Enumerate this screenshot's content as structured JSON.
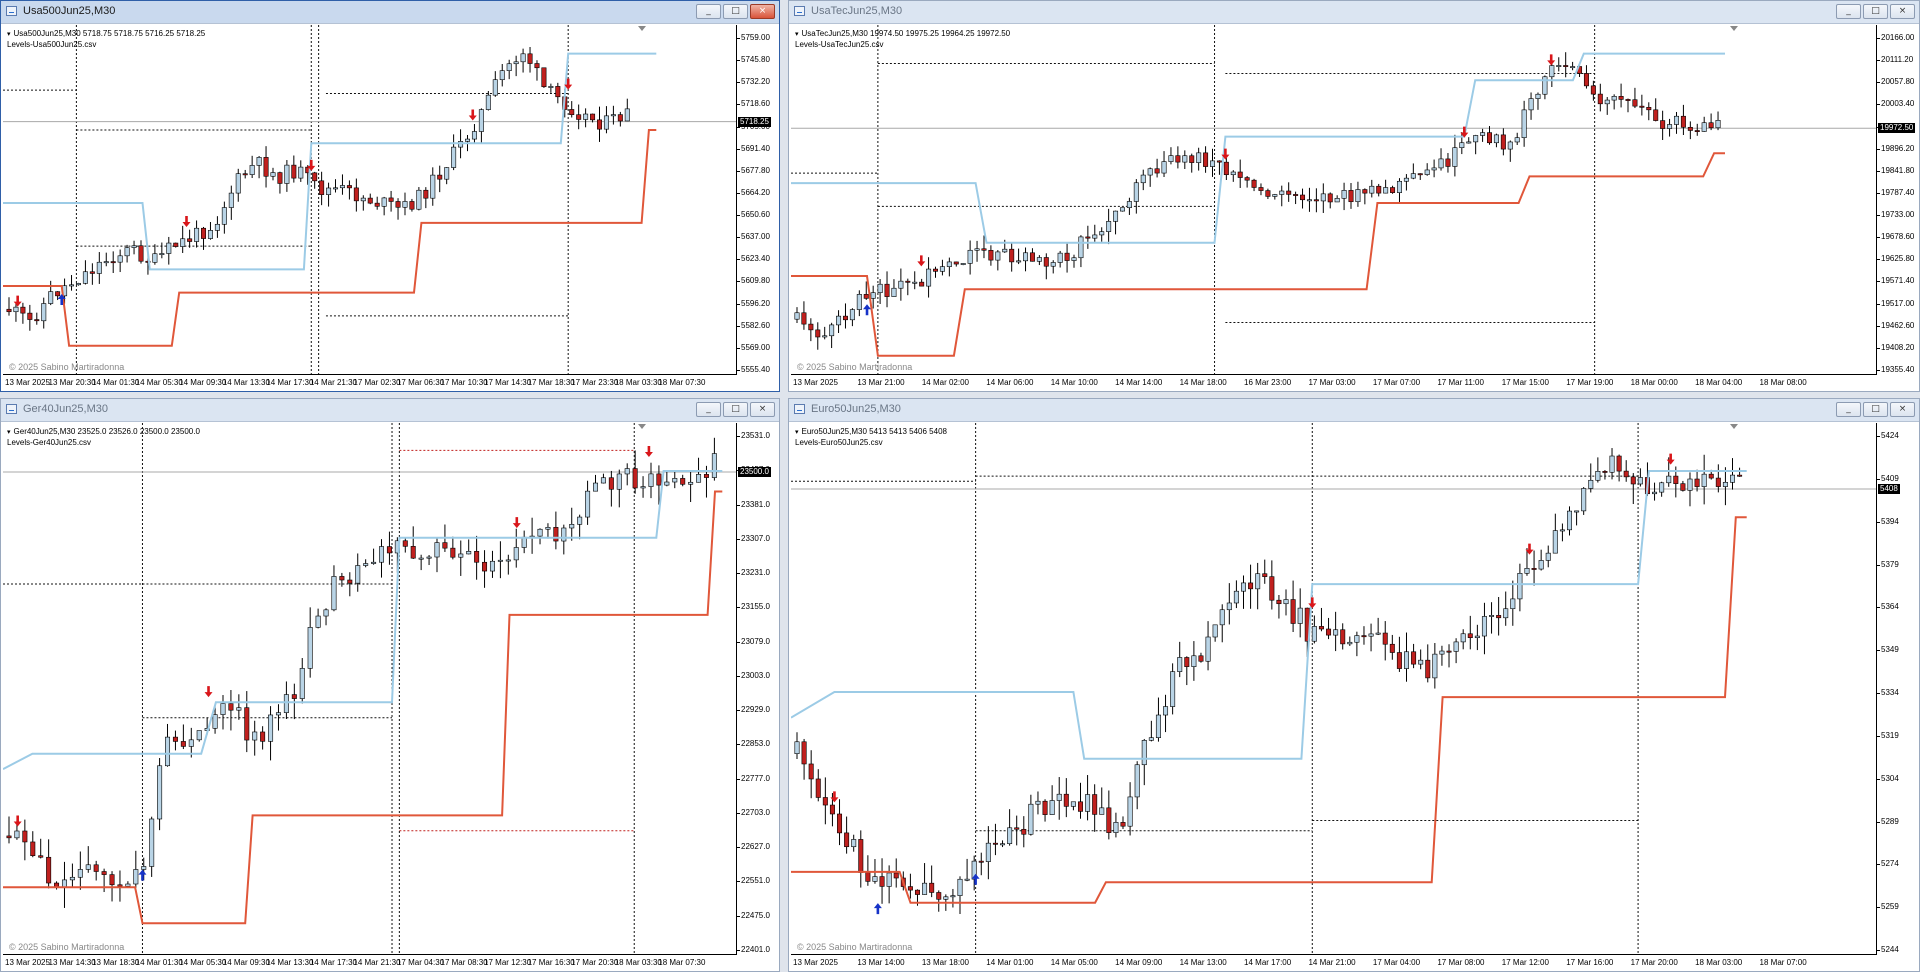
{
  "windows": [
    {
      "id": "w1",
      "title": "Usa500Jun25,M30",
      "header_line1": "Usa500Jun25,M30  5718.75 5718.75 5716.25 5718.25",
      "header_line2": "Levels-Usa500Jun25.csv",
      "copyright": "© 2025 Sabino Martiradonna",
      "current_price": "5718.25",
      "price_ticks": [
        "5759.00",
        "5745.80",
        "5732.20",
        "5718.60",
        "5705.00",
        "5691.40",
        "5677.80",
        "5664.20",
        "5650.60",
        "5637.00",
        "5623.40",
        "5609.80",
        "5596.20",
        "5582.60",
        "5569.00",
        "5555.40"
      ],
      "time_labels": [
        "13 Mar 2025",
        "13 Mar 20:30",
        "14 Mar 01:30",
        "14 Mar 05:30",
        "14 Mar 09:30",
        "14 Mar 13:30",
        "14 Mar 17:30",
        "14 Mar 21:30",
        "17 Mar 02:30",
        "17 Mar 06:30",
        "17 Mar 10:30",
        "17 Mar 14:30",
        "17 Mar 18:30",
        "17 Mar 23:30",
        "18 Mar 03:30",
        "18 Mar 07:30"
      ],
      "buttons": {
        "minimize": "_",
        "maximize": "□",
        "close": "×"
      }
    },
    {
      "id": "w2",
      "title": "UsaTecJun25,M30",
      "header_line1": "UsaTecJun25,M30  19974.50 19975.25 19964.25 19972.50",
      "header_line2": "Levels-UsaTecJun25.csv",
      "copyright": "© 2025 Sabino Martiradonna",
      "current_price": "19972.50",
      "price_ticks": [
        "20166.00",
        "20111.20",
        "20057.80",
        "20003.40",
        "19949.00",
        "19896.20",
        "19841.80",
        "19787.40",
        "19733.00",
        "19678.60",
        "19625.80",
        "19571.40",
        "19517.00",
        "19462.60",
        "19408.20",
        "19355.40"
      ],
      "time_labels": [
        "13 Mar 2025",
        "13 Mar 21:00",
        "14 Mar 02:00",
        "14 Mar 06:00",
        "14 Mar 10:00",
        "14 Mar 14:00",
        "14 Mar 18:00",
        "16 Mar 23:00",
        "17 Mar 03:00",
        "17 Mar 07:00",
        "17 Mar 11:00",
        "17 Mar 15:00",
        "17 Mar 19:00",
        "18 Mar 00:00",
        "18 Mar 04:00",
        "18 Mar 08:00"
      ],
      "buttons": {
        "minimize": "_",
        "maximize": "□",
        "close": "×"
      }
    },
    {
      "id": "w3",
      "title": "Ger40Jun25,M30",
      "header_line1": "Ger40Jun25,M30  23525.0 23526.0 23500.0 23500.0",
      "header_line2": "Levels-Ger40Jun25.csv",
      "copyright": "© 2025 Sabino Martiradonna",
      "current_price": "23500.0",
      "price_ticks": [
        "23531.0",
        "23457.0",
        "23381.0",
        "23307.0",
        "23231.0",
        "23155.0",
        "23079.0",
        "23003.0",
        "22929.0",
        "22853.0",
        "22777.0",
        "22703.0",
        "22627.0",
        "22551.0",
        "22475.0",
        "22401.0"
      ],
      "time_labels": [
        "13 Mar 2025",
        "13 Mar 14:30",
        "13 Mar 18:30",
        "14 Mar 01:30",
        "14 Mar 05:30",
        "14 Mar 09:30",
        "14 Mar 13:30",
        "14 Mar 17:30",
        "14 Mar 21:30",
        "17 Mar 04:30",
        "17 Mar 08:30",
        "17 Mar 12:30",
        "17 Mar 16:30",
        "17 Mar 20:30",
        "18 Mar 03:30",
        "18 Mar 07:30"
      ],
      "buttons": {
        "minimize": "_",
        "maximize": "□",
        "close": "×"
      }
    },
    {
      "id": "w4",
      "title": "Euro50Jun25,M30",
      "header_line1": "Euro50Jun25,M30  5413 5413 5406 5408",
      "header_line2": "Levels-Euro50Jun25.csv",
      "copyright": "© 2025 Sabino Martiradonna",
      "current_price": "5408",
      "price_ticks": [
        "5424",
        "5409",
        "5394",
        "5379",
        "5364",
        "5349",
        "5334",
        "5319",
        "5304",
        "5289",
        "5274",
        "5259",
        "5244"
      ],
      "time_labels": [
        "13 Mar 2025",
        "13 Mar 14:00",
        "13 Mar 18:00",
        "14 Mar 01:00",
        "14 Mar 05:00",
        "14 Mar 09:00",
        "14 Mar 13:00",
        "14 Mar 17:00",
        "14 Mar 21:00",
        "17 Mar 04:00",
        "17 Mar 08:00",
        "17 Mar 12:00",
        "17 Mar 16:00",
        "17 Mar 20:00",
        "18 Mar 03:00",
        "18 Mar 07:00"
      ],
      "buttons": {
        "minimize": "_",
        "maximize": "□",
        "close": "×"
      }
    }
  ],
  "colors": {
    "bull_body": "#b9d4e6",
    "bear_body": "#c0201e",
    "upper_level": "#9ccbe6",
    "lower_level": "#e0573a",
    "sell_arrow": "#d9161a",
    "buy_arrow": "#1633c8",
    "dotted": "#111111",
    "dotted_red": "#c0201e"
  }
}
